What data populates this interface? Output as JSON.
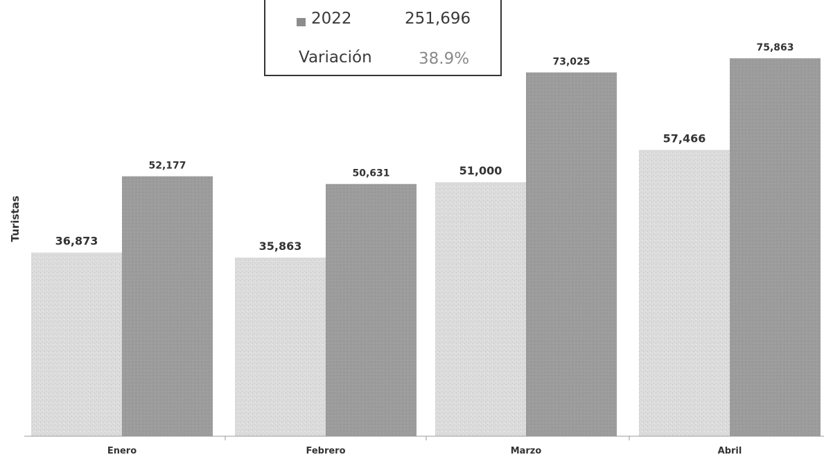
{
  "chart_data": {
    "type": "bar",
    "categories": [
      "Enero",
      "Febrero",
      "Marzo",
      "Abril"
    ],
    "series": [
      {
        "values": [
          36873,
          35863,
          51000,
          57466
        ],
        "labels": [
          "36,873",
          "35,863",
          "51,000",
          "57,466"
        ],
        "color": "#d6d6d6"
      },
      {
        "values": [
          52177,
          50631,
          73025,
          75863
        ],
        "labels": [
          "52,177",
          "50,631",
          "73,025",
          "75,863"
        ],
        "color": "#9b9b9b"
      }
    ],
    "ylabel": "Turistas",
    "ylim": [
      0,
      82000
    ],
    "grid": false
  },
  "summary_box": {
    "year_label": "2022",
    "year_total": "251,696",
    "variation_label": "Variación",
    "variation_value": "38.9%",
    "swatch_color": "#8c8c8c"
  }
}
